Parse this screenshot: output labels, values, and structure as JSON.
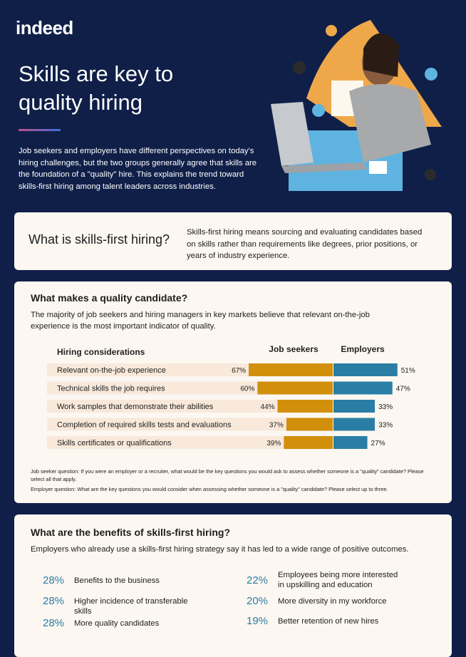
{
  "header": {
    "logo": "indeed",
    "title": "Skills are key to quality hiring",
    "intro": "Job seekers and employers have different perspectives on today's hiring challenges, but the two groups generally agree that skills are the foundation of a \"quality\" hire. This explains the trend toward skills-first hiring among talent leaders across industries."
  },
  "definition": {
    "title": "What is skills-first hiring?",
    "text": "Skills-first hiring means sourcing and evaluating candidates based on skills rather than requirements like degrees, prior positions, or years of industry experience."
  },
  "quality": {
    "title": "What makes a quality candidate?",
    "text": "The majority of job seekers and hiring managers in key markets believe that relevant on-the-job experience is the most important indicator of quality.",
    "column_label": "Hiring considerations",
    "categories": [
      "Relevant on-the-job experience",
      "Technical skills the job requires",
      "Work samples that demonstrate their abilities",
      "Completion of required skills tests and evaluations",
      "Skills certificates or qualifications"
    ],
    "series": [
      {
        "name": "Job seekers",
        "color": "#d18f0b",
        "values": [
          67,
          60,
          44,
          37,
          39
        ],
        "value_labels": [
          "67%",
          "60%",
          "44%",
          "37%",
          "39%"
        ]
      },
      {
        "name": "Employers",
        "color": "#2a7ea5",
        "values": [
          51,
          47,
          33,
          33,
          27
        ],
        "value_labels": [
          "51%",
          "47%",
          "33%",
          "33%",
          "27%"
        ]
      }
    ],
    "notes": [
      "Job seeker question: If you were an employer or a recruiter, what would be the key questions you would ask to assess whether someone is a \"quality\" candidate? Please select all that apply.",
      "Employer question: What are the key questions you would consider when assessing whether someone is a \"quality\" candidate? Please select up to three."
    ]
  },
  "benefits": {
    "title": "What are the benefits of skills-first hiring?",
    "text": "Employers who already use a skills-first hiring strategy say it has led to a wide range of positive outcomes.",
    "items": [
      {
        "percent": "28%",
        "label": "Benefits to the business"
      },
      {
        "percent": "28%",
        "label": "Higher incidence of transferable skills"
      },
      {
        "percent": "28%",
        "label": "More quality candidates"
      },
      {
        "percent": "22%",
        "label": "Employees being more interested in upskilling and education"
      },
      {
        "percent": "20%",
        "label": "More diversity in my workforce"
      },
      {
        "percent": "19%",
        "label": "Better retention of new hires"
      }
    ]
  }
}
